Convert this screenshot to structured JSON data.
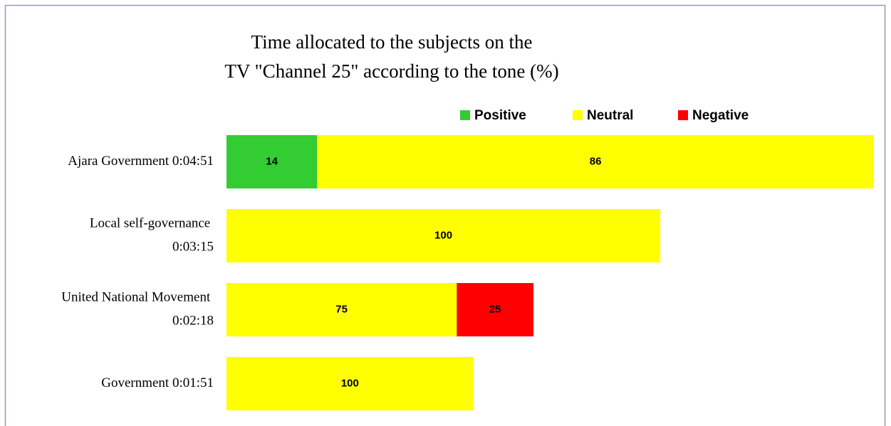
{
  "chart_data": {
    "type": "bar_stacked_horizontal",
    "title": [
      "Time allocated to the subjects on the",
      "TV \"Channel 25\" according to the tone (%)"
    ],
    "categories": [
      "Ajara Government 0:04:51",
      "Local self-governance 0:03:15",
      "United National Movement 0:02:18",
      "Government 0:01:51"
    ],
    "series": [
      {
        "name": "Positive",
        "color": "#33cc33",
        "values": [
          14,
          null,
          null,
          null
        ]
      },
      {
        "name": "Neutral",
        "color": "#ffff00",
        "values": [
          86,
          100,
          75,
          100
        ]
      },
      {
        "name": "Negative",
        "color": "#ff0000",
        "values": [
          null,
          null,
          25,
          null
        ]
      }
    ],
    "legend": "top"
  }
}
